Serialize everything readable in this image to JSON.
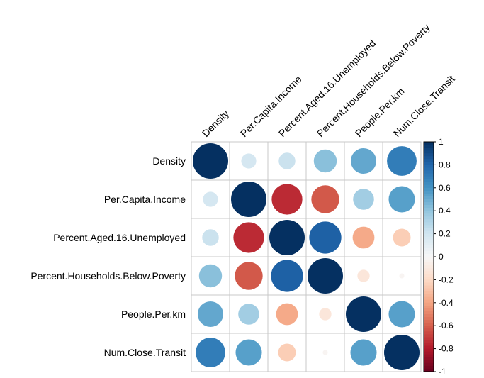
{
  "chart_data": {
    "type": "heatmap",
    "variables": [
      "Density",
      "Per.Capita.Income",
      "Percent.Aged.16.Unemployed",
      "Percent.Households.Below.Poverty",
      "People.Per.km",
      "Num.Close.Transit"
    ],
    "matrix": [
      [
        1.0,
        0.18,
        0.22,
        0.42,
        0.52,
        0.7
      ],
      [
        0.18,
        1.0,
        -0.75,
        -0.62,
        0.35,
        0.55
      ],
      [
        0.22,
        -0.75,
        1.0,
        0.82,
        -0.38,
        -0.25
      ],
      [
        0.42,
        -0.62,
        0.82,
        1.0,
        -0.12,
        -0.02
      ],
      [
        0.52,
        0.35,
        -0.38,
        -0.12,
        1.0,
        0.55
      ],
      [
        0.7,
        0.55,
        -0.25,
        -0.02,
        0.55,
        1.0
      ]
    ],
    "colorbar": {
      "ticks": [
        "1",
        "0.8",
        "0.6",
        "0.4",
        "0.2",
        "0",
        "-0.2",
        "-0.4",
        "-0.6",
        "-0.8",
        "-1"
      ],
      "range": [
        -1,
        1
      ],
      "low_color": "#67001F",
      "mid_color": "#F7F7F7",
      "high_color": "#053061"
    },
    "glyph": "circle"
  }
}
